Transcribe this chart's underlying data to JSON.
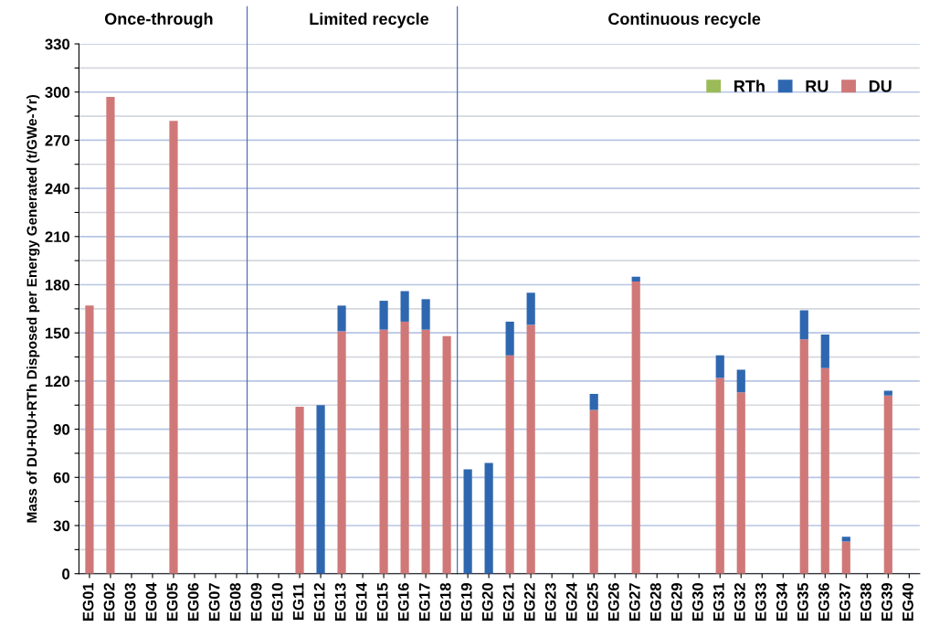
{
  "chart_data": {
    "type": "bar",
    "stacked": true,
    "ylabel": "Mass of DU+RU+RTh Disposed per Energy Generated (t/GWe-Yr)",
    "categories": [
      "EG01",
      "EG02",
      "EG03",
      "EG04",
      "EG05",
      "EG06",
      "EG07",
      "EG08",
      "EG09",
      "EG10",
      "EG11",
      "EG12",
      "EG13",
      "EG14",
      "EG15",
      "EG16",
      "EG17",
      "EG18",
      "EG19",
      "EG20",
      "EG21",
      "EG22",
      "EG23",
      "EG24",
      "EG25",
      "EG26",
      "EG27",
      "EG28",
      "EG29",
      "EG30",
      "EG31",
      "EG32",
      "EG33",
      "EG34",
      "EG35",
      "EG36",
      "EG37",
      "EG38",
      "EG39",
      "EG40"
    ],
    "series": [
      {
        "name": "DU",
        "color": "#d07878",
        "values": [
          167,
          297,
          0,
          0,
          282,
          0,
          0,
          0,
          0,
          0,
          104,
          0,
          151,
          0,
          152,
          157,
          152,
          148,
          0,
          0,
          136,
          155,
          0,
          0,
          102,
          0,
          182,
          0,
          0,
          0,
          122,
          113,
          0,
          0,
          146,
          128,
          20,
          0,
          111,
          0
        ]
      },
      {
        "name": "RU",
        "color": "#2e67b0",
        "values": [
          0,
          0,
          0,
          0,
          0,
          0,
          0,
          0,
          0,
          0,
          0,
          105,
          16,
          0,
          18,
          19,
          19,
          0,
          65,
          69,
          21,
          20,
          0,
          0,
          10,
          0,
          3,
          0,
          0,
          0,
          14,
          14,
          0,
          0,
          18,
          21,
          3,
          0,
          3,
          0
        ]
      },
      {
        "name": "RTh",
        "color": "#9bbb59",
        "values": [
          0,
          0,
          0,
          0,
          0,
          0,
          0,
          0,
          0,
          0,
          0,
          0,
          0,
          0,
          0,
          0,
          0,
          0,
          0,
          0,
          0,
          0,
          0,
          0,
          0,
          0,
          0,
          0,
          0,
          0,
          0,
          0,
          0,
          0,
          0,
          0,
          0,
          0,
          0,
          0
        ]
      }
    ],
    "ylim": [
      0,
      330
    ],
    "yticks": [
      0,
      {
        "value": 15,
        "label": null
      },
      30,
      {
        "value": 45,
        "label": null
      },
      60,
      {
        "value": 75,
        "label": null
      },
      90,
      {
        "value": 105,
        "label": null
      },
      120,
      {
        "value": 135,
        "label": null
      },
      150,
      {
        "value": 165,
        "label": null
      },
      180,
      {
        "value": 195,
        "label": null
      },
      210,
      {
        "value": 225,
        "label": null
      },
      240,
      {
        "value": 255,
        "label": null
      },
      270,
      {
        "value": 285,
        "label": null
      },
      300,
      {
        "value": 315,
        "label": null
      },
      330
    ],
    "grid": "y",
    "legend": "top right",
    "annotations": [
      "Once-through",
      "Limited recycle",
      "Continuous recycle"
    ]
  }
}
